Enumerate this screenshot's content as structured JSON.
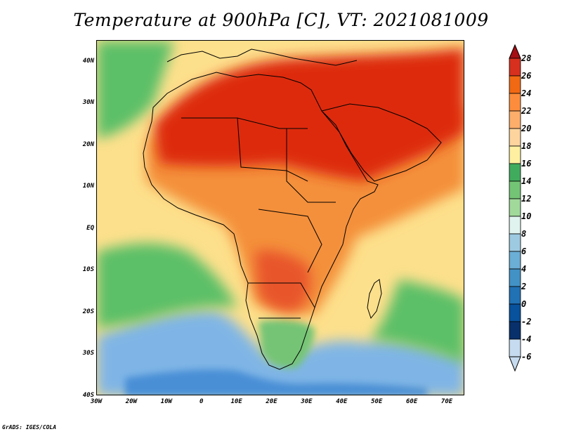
{
  "title": "Temperature at 900hPa [C], VT: 2021081009",
  "credit": "GrADS: IGES/COLA",
  "map": {
    "projection": "latlon",
    "lon_range": [
      -30,
      75
    ],
    "lat_range": [
      -40,
      45
    ],
    "lat_labels": [
      {
        "text": "40N",
        "lat": 40
      },
      {
        "text": "30N",
        "lat": 30
      },
      {
        "text": "20N",
        "lat": 20
      },
      {
        "text": "10N",
        "lat": 10
      },
      {
        "text": "EQ",
        "lat": 0
      },
      {
        "text": "10S",
        "lat": -10
      },
      {
        "text": "20S",
        "lat": -20
      },
      {
        "text": "30S",
        "lat": -30
      },
      {
        "text": "40S",
        "lat": -40
      }
    ],
    "lon_labels": [
      {
        "text": "30W",
        "lon": -30
      },
      {
        "text": "20W",
        "lon": -20
      },
      {
        "text": "10W",
        "lon": -10
      },
      {
        "text": "0",
        "lon": 0
      },
      {
        "text": "10E",
        "lon": 10
      },
      {
        "text": "20E",
        "lon": 20
      },
      {
        "text": "30E",
        "lon": 30
      },
      {
        "text": "40E",
        "lon": 40
      },
      {
        "text": "50E",
        "lon": 50
      },
      {
        "text": "60E",
        "lon": 60
      },
      {
        "text": "70E",
        "lon": 70
      }
    ]
  },
  "colorbar": {
    "labels": [
      "28",
      "26",
      "24",
      "22",
      "20",
      "18",
      "16",
      "14",
      "12",
      "10",
      "8",
      "6",
      "4",
      "2",
      "0",
      "-2",
      "-4",
      "-6"
    ],
    "colors": [
      "#a50f15",
      "#d7301f",
      "#f16913",
      "#fd8d3c",
      "#fdae6b",
      "#fdd49e",
      "#fef0a0",
      "#41ab5d",
      "#74c476",
      "#a1d99b",
      "#e0f3ef",
      "#9ecae1",
      "#6baed6",
      "#4292c6",
      "#2171b5",
      "#08519c",
      "#08306b",
      "#c6dbef"
    ]
  },
  "colors": {
    "hot": "#dd2a10",
    "warm": "#f4903a",
    "mild": "#fde08c",
    "cool_green": "#5cc068",
    "cold_blue": "#6ea8e0",
    "land_border": "#000000"
  }
}
